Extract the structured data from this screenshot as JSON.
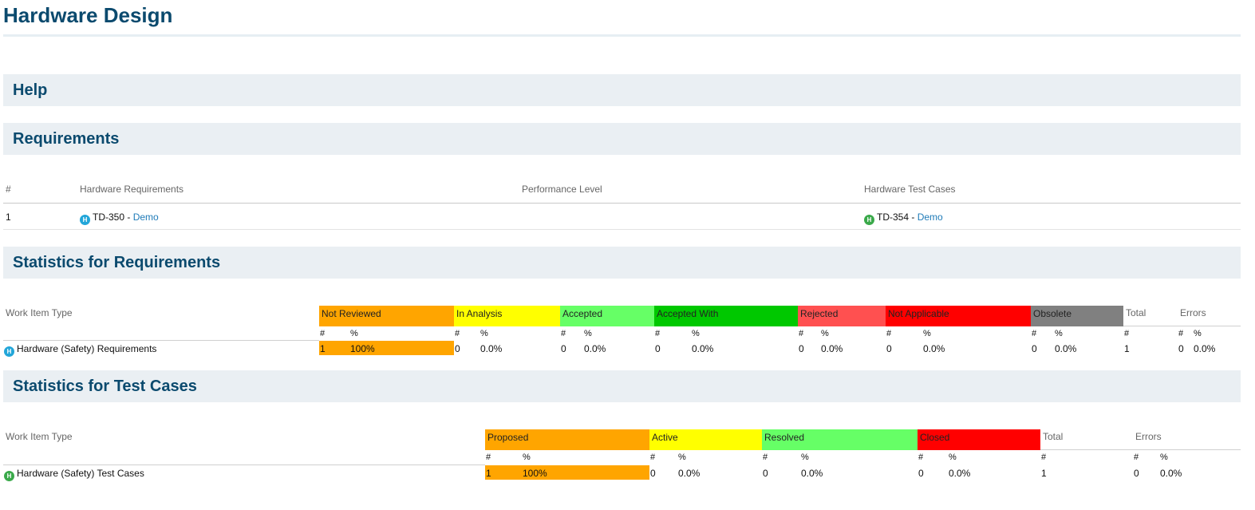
{
  "page": {
    "title": "Hardware Design"
  },
  "sections": {
    "help": "Help",
    "requirements": "Requirements",
    "stats_requirements": "Statistics for Requirements",
    "stats_test_cases": "Statistics for Test Cases"
  },
  "requirements_table": {
    "headers": {
      "num": "#",
      "hw_req": "Hardware Requirements",
      "perf": "Performance Level",
      "hw_tc": "Hardware Test Cases"
    },
    "row": {
      "num": "1",
      "req_id": "TD-350",
      "req_sep": " - ",
      "req_link": "Demo",
      "tc_id": "TD-354",
      "tc_sep": " - ",
      "tc_link": "Demo"
    }
  },
  "icons": {
    "requirement": "hardware-requirement-icon",
    "test_case": "hardware-test-case-icon",
    "letter": "H"
  },
  "colors": {
    "orange": "#ffa500",
    "yellow": "#ffff00",
    "light_green": "#66ff66",
    "green": "#00c800",
    "light_red": "#ff5050",
    "red": "#ff0000",
    "gray": "#808080"
  },
  "req_stats": {
    "label_work_item": "Work Item Type",
    "total_label": "Total",
    "errors_label": "Errors",
    "num_label": "#",
    "pct_label": "%",
    "statuses": [
      {
        "name": "Not Reviewed",
        "count": "1",
        "pct": "100%"
      },
      {
        "name": "In Analysis",
        "count": "0",
        "pct": "0.0%"
      },
      {
        "name": "Accepted",
        "count": "0",
        "pct": "0.0%"
      },
      {
        "name": "Accepted With",
        "count": "0",
        "pct": "0.0%"
      },
      {
        "name": "Rejected",
        "count": "0",
        "pct": "0.0%"
      },
      {
        "name": "Not Applicable",
        "count": "0",
        "pct": "0.0%"
      },
      {
        "name": "Obsolete",
        "count": "0",
        "pct": "0.0%"
      }
    ],
    "row_label": "Hardware (Safety) Requirements",
    "total": "1",
    "errors_count": "0",
    "errors_pct": "0.0%"
  },
  "tc_stats": {
    "label_work_item": "Work Item Type",
    "total_label": "Total",
    "errors_label": "Errors",
    "num_label": "#",
    "pct_label": "%",
    "statuses": [
      {
        "name": "Proposed",
        "count": "1",
        "pct": "100%"
      },
      {
        "name": "Active",
        "count": "0",
        "pct": "0.0%"
      },
      {
        "name": "Resolved",
        "count": "0",
        "pct": "0.0%"
      },
      {
        "name": "Closed",
        "count": "0",
        "pct": "0.0%"
      }
    ],
    "row_label": "Hardware (Safety) Test Cases",
    "total": "1",
    "errors_count": "0",
    "errors_pct": "0.0%"
  }
}
